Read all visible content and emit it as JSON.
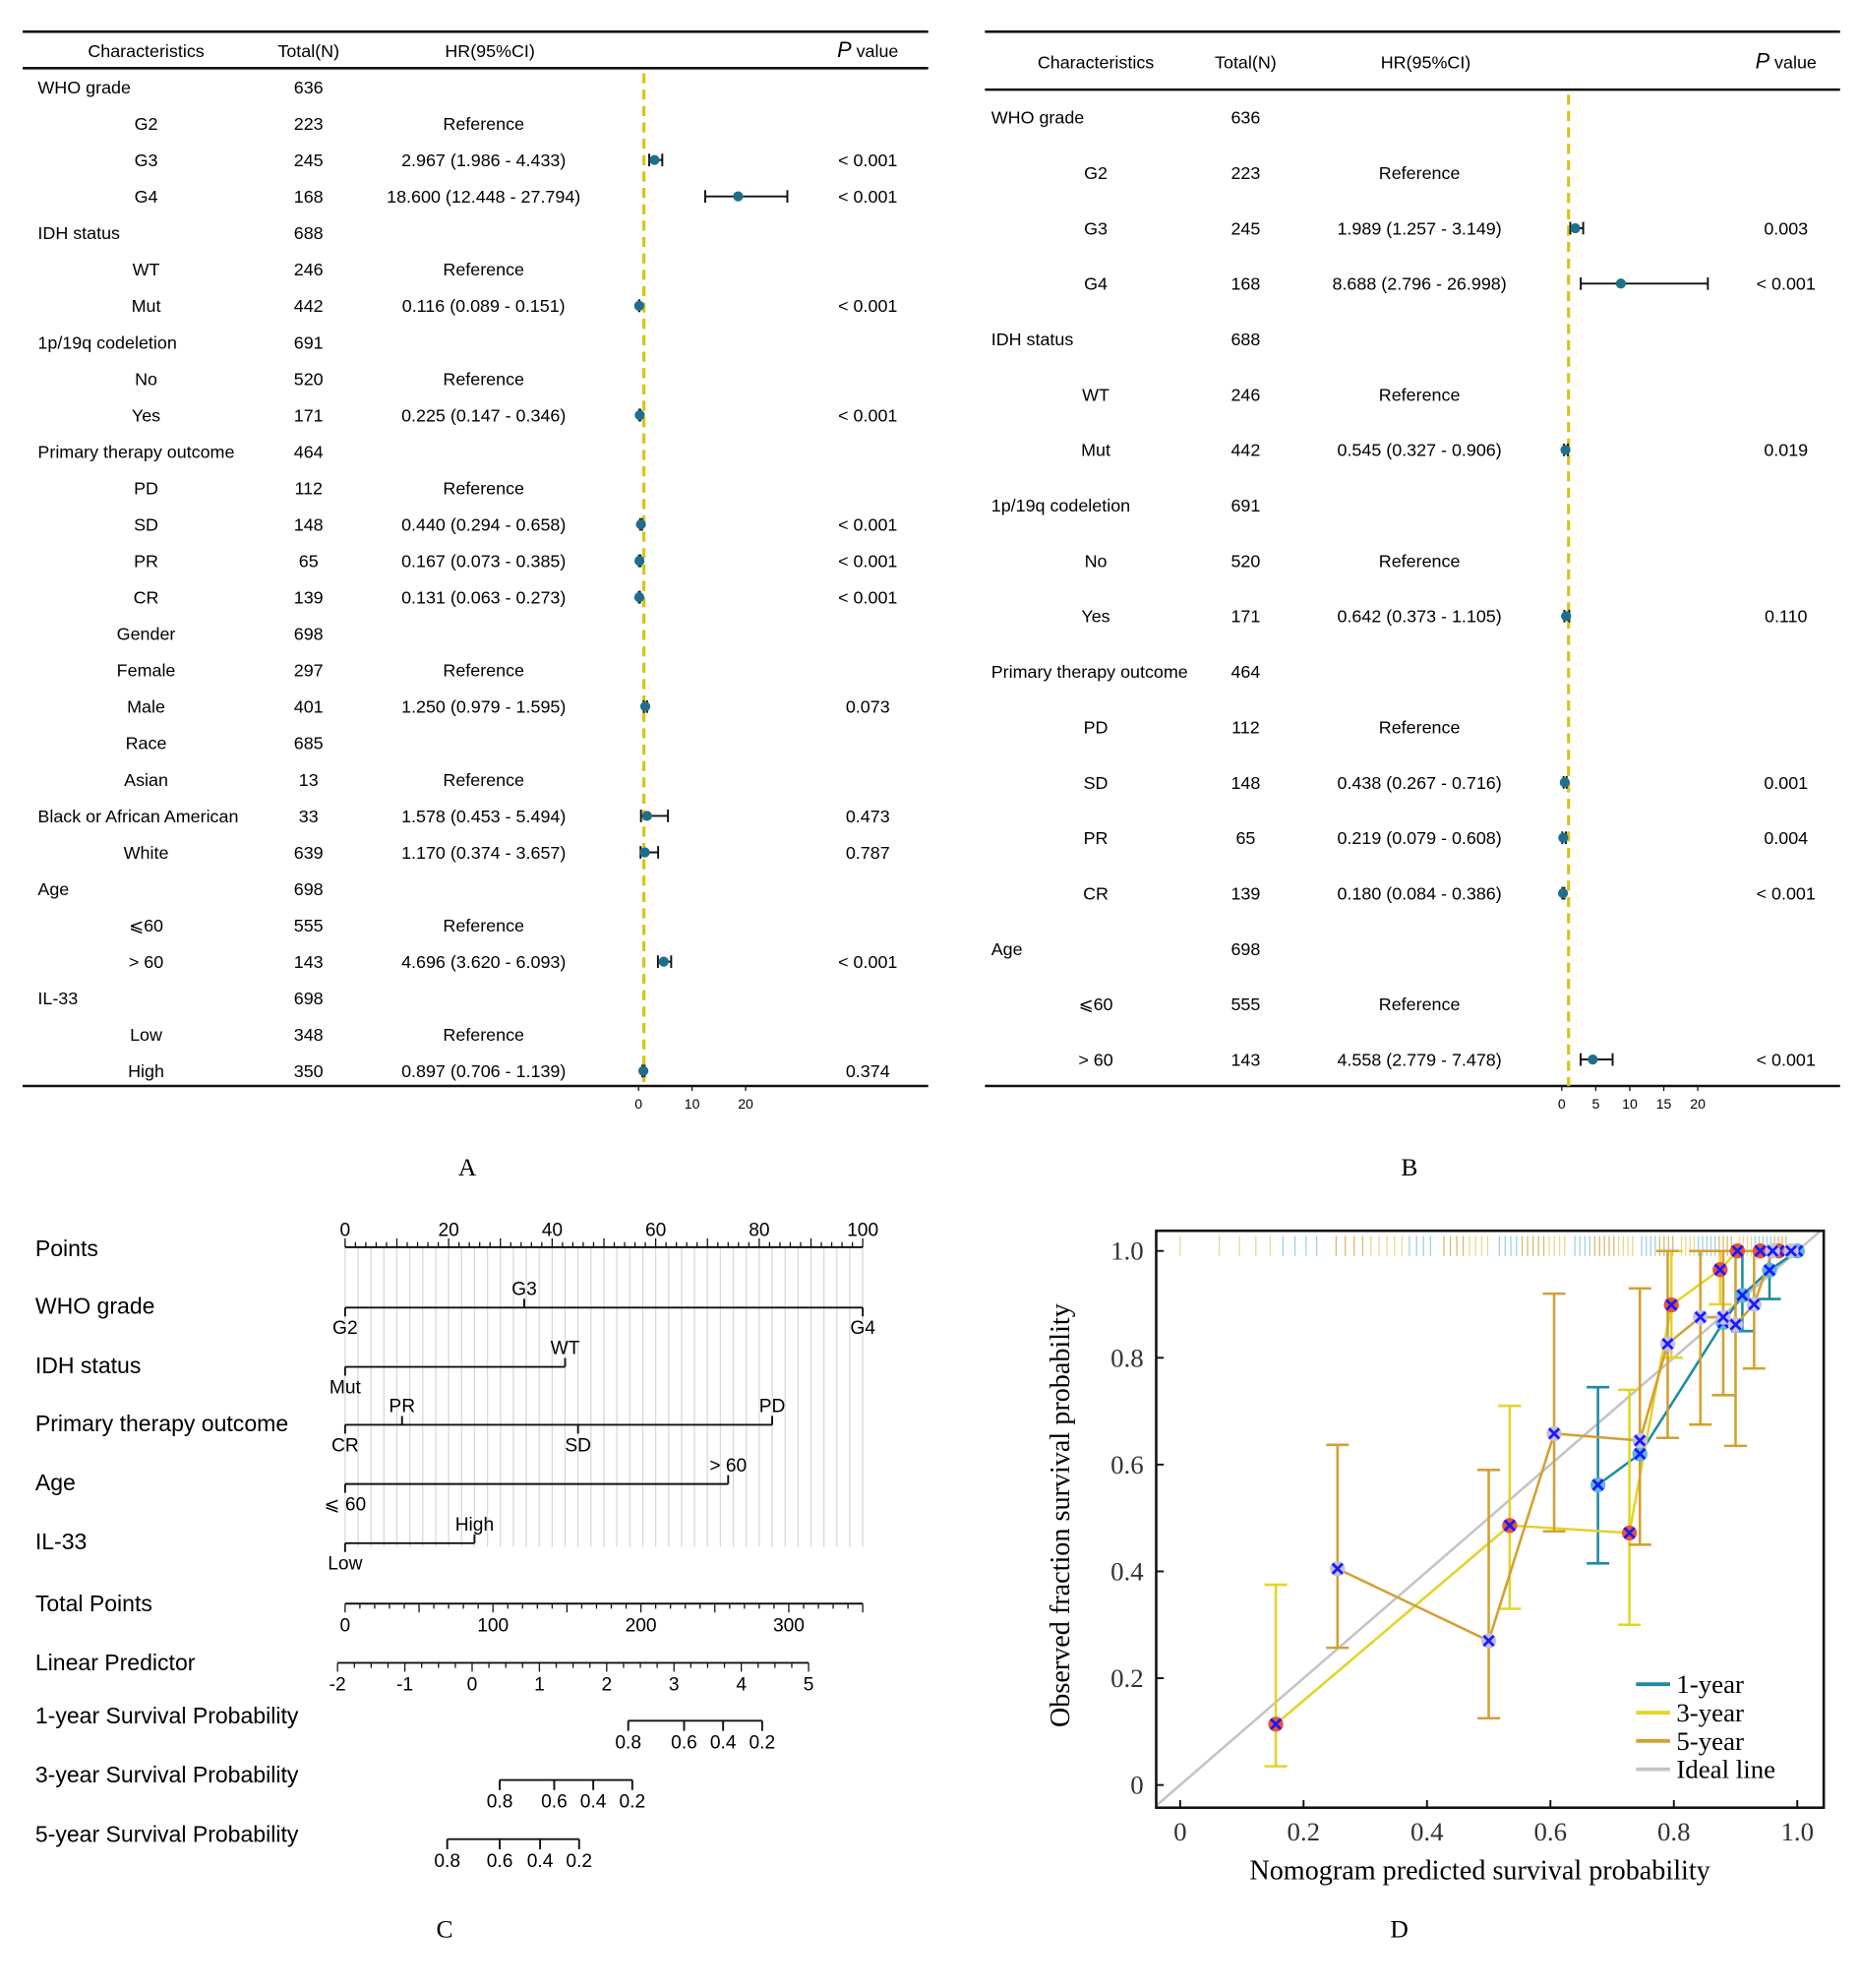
{
  "panel_labels": {
    "a": "A",
    "b": "B",
    "c": "C",
    "d": "D"
  },
  "chart_data": [
    {
      "type": "forest",
      "panel": "A",
      "headers": {
        "characteristics": "Characteristics",
        "total": "Total(N)",
        "hr": "HR(95%CI)",
        "p_italic": "P",
        "p_rest": " value"
      },
      "reference_line": 1,
      "xticks": [
        0,
        10,
        20
      ],
      "point_color": "#1f6e8c",
      "reference_line_color": "#d8c418",
      "rows": [
        {
          "label": "WHO grade",
          "level": 0,
          "n": "636"
        },
        {
          "label": "G2",
          "level": 1,
          "n": "223",
          "hr_text": "Reference"
        },
        {
          "label": "G3",
          "level": 1,
          "n": "245",
          "hr_text": "2.967 (1.986 - 4.433)",
          "p": "< 0.001",
          "hr": 2.967,
          "lo": 1.986,
          "hi": 4.433
        },
        {
          "label": "G4",
          "level": 1,
          "n": "168",
          "hr_text": "18.600 (12.448 - 27.794)",
          "p": "< 0.001",
          "hr": 18.6,
          "lo": 12.448,
          "hi": 27.794
        },
        {
          "label": "IDH status",
          "level": 0,
          "n": "688"
        },
        {
          "label": "WT",
          "level": 1,
          "n": "246",
          "hr_text": "Reference"
        },
        {
          "label": "Mut",
          "level": 1,
          "n": "442",
          "hr_text": "0.116 (0.089 - 0.151)",
          "p": "< 0.001",
          "hr": 0.116,
          "lo": 0.089,
          "hi": 0.151
        },
        {
          "label": "1p/19q codeletion",
          "level": 0,
          "n": "691"
        },
        {
          "label": "No",
          "level": 1,
          "n": "520",
          "hr_text": "Reference"
        },
        {
          "label": "Yes",
          "level": 1,
          "n": "171",
          "hr_text": "0.225 (0.147 - 0.346)",
          "p": "< 0.001",
          "hr": 0.225,
          "lo": 0.147,
          "hi": 0.346
        },
        {
          "label": "Primary therapy outcome",
          "level": 0,
          "n": "464"
        },
        {
          "label": "PD",
          "level": 1,
          "n": "112",
          "hr_text": "Reference"
        },
        {
          "label": "SD",
          "level": 1,
          "n": "148",
          "hr_text": "0.440 (0.294 - 0.658)",
          "p": "< 0.001",
          "hr": 0.44,
          "lo": 0.294,
          "hi": 0.658
        },
        {
          "label": "PR",
          "level": 1,
          "n": "65",
          "hr_text": "0.167 (0.073 - 0.385)",
          "p": "< 0.001",
          "hr": 0.167,
          "lo": 0.073,
          "hi": 0.385
        },
        {
          "label": "CR",
          "level": 1,
          "n": "139",
          "hr_text": "0.131 (0.063 - 0.273)",
          "p": "< 0.001",
          "hr": 0.131,
          "lo": 0.063,
          "hi": 0.273
        },
        {
          "label": "Gender",
          "level": 1,
          "n": "698"
        },
        {
          "label": "Female",
          "level": 1,
          "n": "297",
          "hr_text": "Reference"
        },
        {
          "label": "Male",
          "level": 1,
          "n": "401",
          "hr_text": "1.250 (0.979 - 1.595)",
          "p": "0.073",
          "hr": 1.25,
          "lo": 0.979,
          "hi": 1.595
        },
        {
          "label": "Race",
          "level": 1,
          "n": "685"
        },
        {
          "label": "Asian",
          "level": 1,
          "n": "13",
          "hr_text": "Reference"
        },
        {
          "label": "Black or African American",
          "level": 0,
          "n": "33",
          "hr_text": "1.578 (0.453 - 5.494)",
          "p": "0.473",
          "hr": 1.578,
          "lo": 0.453,
          "hi": 5.494
        },
        {
          "label": "White",
          "level": 1,
          "n": "639",
          "hr_text": "1.170 (0.374 - 3.657)",
          "p": "0.787",
          "hr": 1.17,
          "lo": 0.374,
          "hi": 3.657
        },
        {
          "label": "Age",
          "level": 0,
          "n": "698"
        },
        {
          "label": "⩽60",
          "level": 1,
          "n": "555",
          "hr_text": "Reference"
        },
        {
          "label": "> 60",
          "level": 1,
          "n": "143",
          "hr_text": "4.696 (3.620 - 6.093)",
          "p": "< 0.001",
          "hr": 4.696,
          "lo": 3.62,
          "hi": 6.093
        },
        {
          "label": "IL-33",
          "level": 0,
          "n": "698"
        },
        {
          "label": "Low",
          "level": 1,
          "n": "348",
          "hr_text": "Reference"
        },
        {
          "label": "High",
          "level": 1,
          "n": "350",
          "hr_text": "0.897 (0.706 - 1.139)",
          "p": "0.374",
          "hr": 0.897,
          "lo": 0.706,
          "hi": 1.139
        }
      ]
    },
    {
      "type": "forest",
      "panel": "B",
      "headers": {
        "characteristics": "Characteristics",
        "total": "Total(N)",
        "hr": "HR(95%CI)",
        "p_italic": "P",
        "p_rest": " value"
      },
      "reference_line": 1,
      "xticks": [
        0,
        5,
        10,
        15,
        20
      ],
      "point_color": "#1f6e8c",
      "reference_line_color": "#d8c418",
      "rows": [
        {
          "label": "WHO grade",
          "level": 0,
          "n": "636"
        },
        {
          "label": "G2",
          "level": 1,
          "n": "223",
          "hr_text": "Reference"
        },
        {
          "label": "G3",
          "level": 1,
          "n": "245",
          "hr_text": "1.989 (1.257 - 3.149)",
          "p": "0.003",
          "hr": 1.989,
          "lo": 1.257,
          "hi": 3.149
        },
        {
          "label": "G4",
          "level": 1,
          "n": "168",
          "hr_text": "8.688 (2.796 - 26.998)",
          "p": "< 0.001",
          "hr": 8.688,
          "lo": 2.796,
          "hi": 26.998
        },
        {
          "label": "IDH status",
          "level": 0,
          "n": "688"
        },
        {
          "label": "WT",
          "level": 1,
          "n": "246",
          "hr_text": "Reference"
        },
        {
          "label": "Mut",
          "level": 1,
          "n": "442",
          "hr_text": "0.545 (0.327 - 0.906)",
          "p": "0.019",
          "hr": 0.545,
          "lo": 0.327,
          "hi": 0.906
        },
        {
          "label": "1p/19q codeletion",
          "level": 0,
          "n": "691"
        },
        {
          "label": "No",
          "level": 1,
          "n": "520",
          "hr_text": "Reference"
        },
        {
          "label": "Yes",
          "level": 1,
          "n": "171",
          "hr_text": "0.642 (0.373 - 1.105)",
          "p": "0.110",
          "hr": 0.642,
          "lo": 0.373,
          "hi": 1.105
        },
        {
          "label": "Primary therapy outcome",
          "level": 0,
          "n": "464"
        },
        {
          "label": "PD",
          "level": 1,
          "n": "112",
          "hr_text": "Reference"
        },
        {
          "label": "SD",
          "level": 1,
          "n": "148",
          "hr_text": "0.438 (0.267 - 0.716)",
          "p": "0.001",
          "hr": 0.438,
          "lo": 0.267,
          "hi": 0.716
        },
        {
          "label": "PR",
          "level": 1,
          "n": "65",
          "hr_text": "0.219 (0.079 - 0.608)",
          "p": "0.004",
          "hr": 0.219,
          "lo": 0.079,
          "hi": 0.608
        },
        {
          "label": "CR",
          "level": 1,
          "n": "139",
          "hr_text": "0.180 (0.084 - 0.386)",
          "p": "< 0.001",
          "hr": 0.18,
          "lo": 0.084,
          "hi": 0.386
        },
        {
          "label": "Age",
          "level": 0,
          "n": "698"
        },
        {
          "label": "⩽60",
          "level": 1,
          "n": "555",
          "hr_text": "Reference"
        },
        {
          "label": "> 60",
          "level": 1,
          "n": "143",
          "hr_text": "4.558 (2.779 - 7.478)",
          "p": "< 0.001",
          "hr": 4.558,
          "lo": 2.779,
          "hi": 7.478
        }
      ]
    },
    {
      "type": "nomogram",
      "panel": "C",
      "points_axis": {
        "label": "Points",
        "range": [
          0,
          100
        ],
        "tick_labels": [
          0,
          20,
          40,
          60,
          80,
          100
        ]
      },
      "variables": [
        {
          "name": "WHO grade",
          "levels": [
            {
              "label": "G2",
              "points": 0
            },
            {
              "label": "G3",
              "points": 34.6
            },
            {
              "label": "G4",
              "points": 100
            }
          ]
        },
        {
          "name": "IDH status",
          "levels": [
            {
              "label": "Mut",
              "points": 0
            },
            {
              "label": "WT",
              "points": 42.5
            }
          ]
        },
        {
          "name": "Primary therapy outcome",
          "levels": [
            {
              "label": "CR",
              "points": 0
            },
            {
              "label": "PR",
              "points": 11
            },
            {
              "label": "SD",
              "points": 45
            },
            {
              "label": "PD",
              "points": 82.5
            }
          ]
        },
        {
          "name": "Age",
          "levels": [
            {
              "label": "⩽ 60",
              "points": 0
            },
            {
              "label": "> 60",
              "points": 74
            }
          ]
        },
        {
          "name": "IL-33",
          "levels": [
            {
              "label": "Low",
              "points": 0
            },
            {
              "label": "High",
              "points": 25
            }
          ]
        }
      ],
      "total_points": {
        "label": "Total Points",
        "range": [
          0,
          350
        ],
        "tick_labels": [
          0,
          100,
          200,
          300
        ]
      },
      "linear_predictor": {
        "label": "Linear Predictor",
        "range": [
          -2,
          5
        ],
        "tick_labels": [
          -2,
          -1,
          0,
          1,
          2,
          3,
          4,
          5
        ]
      },
      "survival_scales": [
        {
          "label": "1-year Survival Probability",
          "ticks": [
            {
              "label": "0.8",
              "lp": 2.32
            },
            {
              "label": "0.6",
              "lp": 3.15
            },
            {
              "label": "0.4",
              "lp": 3.73
            },
            {
              "label": "0.2",
              "lp": 4.31
            }
          ]
        },
        {
          "label": "3-year Survival Probability",
          "ticks": [
            {
              "label": "0.8",
              "lp": 0.41
            },
            {
              "label": "0.6",
              "lp": 1.22
            },
            {
              "label": "0.4",
              "lp": 1.8
            },
            {
              "label": "0.2",
              "lp": 2.38
            }
          ]
        },
        {
          "label": "5-year Survival Probability",
          "ticks": [
            {
              "label": "0.8",
              "lp": -0.37
            },
            {
              "label": "0.6",
              "lp": 0.41
            },
            {
              "label": "0.4",
              "lp": 1.01
            },
            {
              "label": "0.2",
              "lp": 1.59
            }
          ]
        }
      ]
    },
    {
      "type": "line",
      "panel": "D",
      "xlabel": "Nomogram predicted survival probability",
      "ylabel": "Observed fraction survival probability",
      "xlim": [
        -0.04,
        1.04
      ],
      "ylim": [
        -0.04,
        1.03
      ],
      "xticks": [
        {
          "v": 0,
          "label": "0"
        },
        {
          "v": 0.2,
          "label": "0.2"
        },
        {
          "v": 0.4,
          "label": "0.4"
        },
        {
          "v": 0.6,
          "label": "0.6"
        },
        {
          "v": 0.8,
          "label": "0.8"
        },
        {
          "v": 1.0,
          "label": "1.0"
        }
      ],
      "yticks": [
        {
          "v": 0,
          "label": "0"
        },
        {
          "v": 0.2,
          "label": "0.2"
        },
        {
          "v": 0.4,
          "label": "0.4"
        },
        {
          "v": 0.6,
          "label": "0.6"
        },
        {
          "v": 0.8,
          "label": "0.8"
        },
        {
          "v": 1.0,
          "label": "1.0"
        }
      ],
      "legend_position": "bottom-right",
      "marker_color": "#1a1aff",
      "series": [
        {
          "name": "1-year",
          "color": "#1d8aa6",
          "dot_color": "#5fb6d0",
          "points": [
            {
              "x": 0.677,
              "y": 0.562,
              "lo": 0.415,
              "hi": 0.745
            },
            {
              "x": 0.745,
              "y": 0.62
            },
            {
              "x": 0.88,
              "y": 0.866
            },
            {
              "x": 0.911,
              "y": 0.917,
              "lo": 0.85,
              "hi": 1.0
            },
            {
              "x": 0.955,
              "y": 0.964,
              "lo": 0.91,
              "hi": 1.0
            },
            {
              "x": 1.0,
              "y": 1.0
            }
          ]
        },
        {
          "name": "3-year",
          "color": "#e2d42a",
          "dot_color": "#e8553a",
          "points": [
            {
              "x": 0.155,
              "y": 0.114,
              "lo": 0.035,
              "hi": 0.375
            },
            {
              "x": 0.534,
              "y": 0.486,
              "lo": 0.33,
              "hi": 0.71
            },
            {
              "x": 0.728,
              "y": 0.472,
              "lo": 0.3,
              "hi": 0.74
            },
            {
              "x": 0.796,
              "y": 0.899,
              "lo": 0.8,
              "hi": 1.0
            },
            {
              "x": 0.875,
              "y": 0.965,
              "lo": 0.9,
              "hi": 1.0
            },
            {
              "x": 0.903,
              "y": 1.0
            },
            {
              "x": 0.94,
              "y": 1.0
            },
            {
              "x": 0.97,
              "y": 1.0
            }
          ]
        },
        {
          "name": "5-year",
          "color": "#d3a030",
          "dot_color": "#c4c0dc",
          "points": [
            {
              "x": 0.255,
              "y": 0.405,
              "lo": 0.257,
              "hi": 0.637
            },
            {
              "x": 0.5,
              "y": 0.27,
              "lo": 0.125,
              "hi": 0.59
            },
            {
              "x": 0.606,
              "y": 0.658,
              "lo": 0.475,
              "hi": 0.92
            },
            {
              "x": 0.745,
              "y": 0.645,
              "lo": 0.45,
              "hi": 0.93
            },
            {
              "x": 0.79,
              "y": 0.826,
              "lo": 0.65,
              "hi": 1.0
            },
            {
              "x": 0.843,
              "y": 0.876,
              "lo": 0.675,
              "hi": 1.0
            },
            {
              "x": 0.88,
              "y": 0.876,
              "lo": 0.73,
              "hi": 1.0
            },
            {
              "x": 0.9,
              "y": 0.862,
              "lo": 0.635,
              "hi": 1.0
            },
            {
              "x": 0.93,
              "y": 0.9,
              "lo": 0.78,
              "hi": 1.0
            },
            {
              "x": 0.96,
              "y": 1.0
            },
            {
              "x": 0.99,
              "y": 1.0
            }
          ]
        }
      ],
      "ideal_line": {
        "name": "Ideal line",
        "color": "#c4c4c4"
      }
    }
  ]
}
